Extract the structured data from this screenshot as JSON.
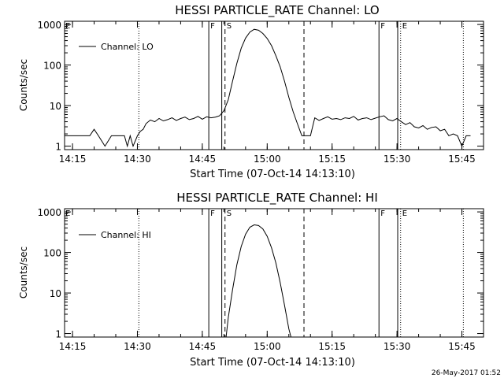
{
  "footer": {
    "timestamp": "26-May-2017 01:52"
  },
  "colors": {
    "background": "#ffffff",
    "foreground": "#000000"
  },
  "chart_data": [
    {
      "type": "line",
      "title": "HESSI PARTICLE_RATE Channel: LO",
      "xlabel": "Start Time (07-Oct-14 14:13:10)",
      "ylabel": "Counts/sec",
      "legend": {
        "label": "Channel: LO",
        "position": "top-left"
      },
      "x_ticks": [
        "14:15",
        "14:30",
        "14:45",
        "15:00",
        "15:15",
        "15:30",
        "15:45"
      ],
      "y_ticks": [
        "1",
        "10",
        "100",
        "1000"
      ],
      "y_scale": "log",
      "xlim": [
        "14:13:10",
        "15:50:00"
      ],
      "ylim": [
        0.82,
        1200
      ],
      "markers": [
        {
          "label": "F",
          "time": "14:46:30",
          "style": "solid"
        },
        {
          "label": "",
          "time": "14:49:30",
          "style": "solid"
        },
        {
          "label": "S",
          "time": "14:50:15",
          "style": "dashed"
        },
        {
          "label": "",
          "time": "15:08:30",
          "style": "dashed"
        },
        {
          "label": "F",
          "time": "15:25:50",
          "style": "solid"
        },
        {
          "label": "",
          "time": "15:30:10",
          "style": "solid"
        },
        {
          "label": "E",
          "time": "15:30:50",
          "style": "dotted"
        },
        {
          "label": "",
          "time": "14:30:20",
          "style": "dotted"
        },
        {
          "label": "",
          "time": "15:45:20",
          "style": "dotted"
        }
      ],
      "series": [
        {
          "name": "Channel: LO",
          "x": [
            "14:13:10",
            "14:15:00",
            "14:17:00",
            "14:19:00",
            "14:20:00",
            "14:21:00",
            "14:22:30",
            "14:24:00",
            "14:25:00",
            "14:27:00",
            "14:27:40",
            "14:28:20",
            "14:29:00",
            "14:30:00",
            "14:30:40",
            "14:31:20",
            "14:32:00",
            "14:33:00",
            "14:34:00",
            "14:35:00",
            "14:36:00",
            "14:37:00",
            "14:38:00",
            "14:39:00",
            "14:40:00",
            "14:41:00",
            "14:42:00",
            "14:43:00",
            "14:44:00",
            "14:45:00",
            "14:46:00",
            "14:47:00",
            "14:48:00",
            "14:49:00",
            "14:50:00",
            "14:51:00",
            "14:52:00",
            "14:53:00",
            "14:54:00",
            "14:55:00",
            "14:56:00",
            "14:57:00",
            "14:58:00",
            "14:59:00",
            "15:00:00",
            "15:01:00",
            "15:02:00",
            "15:03:00",
            "15:04:00",
            "15:05:00",
            "15:06:00",
            "15:07:00",
            "15:08:00",
            "15:09:00",
            "15:10:00",
            "15:11:00",
            "15:12:00",
            "15:13:00",
            "15:14:00",
            "15:15:00",
            "15:16:00",
            "15:17:00",
            "15:18:00",
            "15:19:00",
            "15:20:00",
            "15:21:00",
            "15:22:00",
            "15:23:00",
            "15:24:00",
            "15:25:00",
            "15:26:00",
            "15:27:00",
            "15:28:00",
            "15:29:00",
            "15:30:00",
            "15:31:00",
            "15:32:00",
            "15:33:00",
            "15:34:00",
            "15:35:00",
            "15:36:00",
            "15:37:00",
            "15:38:00",
            "15:39:00",
            "15:40:00",
            "15:41:00",
            "15:42:00",
            "15:43:00",
            "15:44:00",
            "15:45:00",
            "15:46:00",
            "15:47:00"
          ],
          "y": [
            1.8,
            1.8,
            1.8,
            1.8,
            2.6,
            1.8,
            1.0,
            1.8,
            1.8,
            1.8,
            1.0,
            1.8,
            1.0,
            1.8,
            2.3,
            2.6,
            3.6,
            4.4,
            4.0,
            4.8,
            4.2,
            4.5,
            5.0,
            4.3,
            4.8,
            5.2,
            4.5,
            4.8,
            5.4,
            4.6,
            5.3,
            5.0,
            5.2,
            5.6,
            7.5,
            14,
            40,
            110,
            260,
            460,
            650,
            760,
            720,
            600,
            450,
            300,
            170,
            90,
            40,
            16,
            7,
            3.5,
            1.8,
            1.8,
            1.8,
            5.0,
            4.3,
            4.8,
            5.3,
            4.6,
            4.8,
            4.5,
            5.0,
            4.8,
            5.4,
            4.4,
            4.8,
            5.0,
            4.5,
            4.9,
            5.3,
            5.6,
            4.5,
            4.2,
            4.8,
            4.0,
            3.4,
            3.8,
            3.0,
            2.8,
            3.2,
            2.6,
            2.9,
            3.0,
            2.4,
            2.6,
            1.8,
            2.0,
            1.8,
            1.0,
            1.8,
            1.8
          ]
        }
      ]
    },
    {
      "type": "line",
      "title": "HESSI PARTICLE_RATE Channel: HI",
      "xlabel": "Start Time (07-Oct-14 14:13:10)",
      "ylabel": "Counts/sec",
      "legend": {
        "label": "Channel: HI",
        "position": "top-left"
      },
      "x_ticks": [
        "14:15",
        "14:30",
        "14:45",
        "15:00",
        "15:15",
        "15:30",
        "15:45"
      ],
      "y_ticks": [
        "1",
        "10",
        "100",
        "1000"
      ],
      "y_scale": "log",
      "xlim": [
        "14:13:10",
        "15:50:00"
      ],
      "ylim": [
        0.82,
        1200
      ],
      "markers": [
        {
          "label": "F",
          "time": "14:46:30",
          "style": "solid"
        },
        {
          "label": "",
          "time": "14:49:30",
          "style": "solid"
        },
        {
          "label": "S",
          "time": "14:50:15",
          "style": "dashed"
        },
        {
          "label": "",
          "time": "15:08:30",
          "style": "dashed"
        },
        {
          "label": "F",
          "time": "15:25:50",
          "style": "solid"
        },
        {
          "label": "",
          "time": "15:30:10",
          "style": "solid"
        },
        {
          "label": "E",
          "time": "15:30:50",
          "style": "dotted"
        },
        {
          "label": "",
          "time": "14:30:20",
          "style": "dotted"
        },
        {
          "label": "",
          "time": "15:45:20",
          "style": "dotted"
        }
      ],
      "series": [
        {
          "name": "Channel: HI",
          "x": [
            "14:50:30",
            "14:51:00",
            "14:52:00",
            "14:53:00",
            "14:54:00",
            "14:55:00",
            "14:56:00",
            "14:57:00",
            "14:58:00",
            "14:59:00",
            "15:00:00",
            "15:01:00",
            "15:02:00",
            "15:03:00",
            "15:04:00",
            "15:05:00",
            "15:05:30"
          ],
          "y": [
            0.82,
            2.5,
            12,
            50,
            140,
            280,
            420,
            480,
            460,
            380,
            250,
            130,
            55,
            18,
            5,
            1.3,
            0.82
          ]
        }
      ]
    }
  ]
}
